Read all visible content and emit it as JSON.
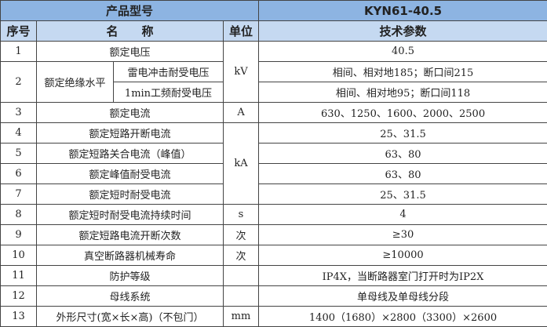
{
  "header": {
    "product_label": "产品型号",
    "model": "KYN61-40.5",
    "col_seq": "序号",
    "col_name": "名　　称",
    "col_unit": "单位",
    "col_param": "技术参数"
  },
  "rows": [
    {
      "no": "1",
      "name": "额定电压",
      "unit": "kV",
      "value": "40.5"
    },
    {
      "no": "2",
      "name": "额定绝缘水平",
      "sub": [
        {
          "name": "雷电冲击耐受电压",
          "value": "相间、相对地185；断口间215"
        },
        {
          "name": "1min工频耐受电压",
          "value": "相间、相对地95；断口间118"
        }
      ]
    },
    {
      "no": "3",
      "name": "额定电流",
      "unit": "A",
      "value": "630、1250、1600、2000、2500"
    },
    {
      "no": "4",
      "name": "额定短路开断电流",
      "unit": "kA",
      "value": "25、31.5"
    },
    {
      "no": "5",
      "name": "额定短路关合电流（峰值）",
      "value": "63、80"
    },
    {
      "no": "6",
      "name": "额定峰值耐受电流",
      "value": "63、80"
    },
    {
      "no": "7",
      "name": "额定短时耐受电流",
      "value": "25、31.5"
    },
    {
      "no": "8",
      "name": "额定短时耐受电流持续时间",
      "unit": "s",
      "value": "4"
    },
    {
      "no": "9",
      "name": "额定短路电流开断次数",
      "unit": "次",
      "value": "≥30"
    },
    {
      "no": "10",
      "name": "真空断路器机械寿命",
      "unit": "次",
      "value": "≥10000"
    },
    {
      "no": "11",
      "name": "防护等级",
      "unit": "",
      "value": "IP4X，当断路器室门打开时为IP2X"
    },
    {
      "no": "12",
      "name": "母线系统",
      "unit": "",
      "value": "单母线及单母线分段"
    },
    {
      "no": "13",
      "name": "外形尺寸(宽×长×高)（不包门）",
      "unit": "mm",
      "value": "1400（1680）×2800（3300）×2600"
    }
  ],
  "colors": {
    "header_dark": "#8db4e2",
    "header_light": "#c5d9f1",
    "border": "#444444"
  }
}
